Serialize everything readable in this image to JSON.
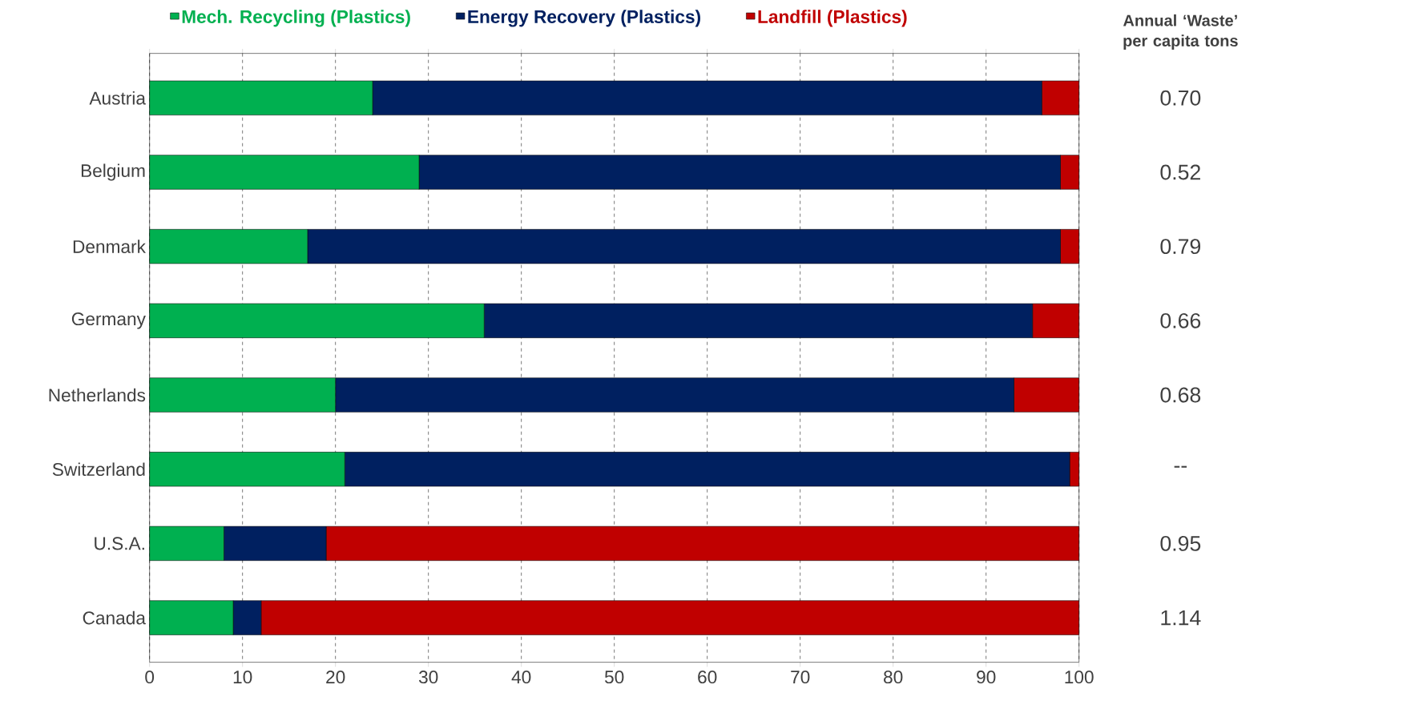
{
  "chart_data": {
    "type": "bar",
    "orientation": "horizontal",
    "stacked": true,
    "categories": [
      "Austria",
      "Belgium",
      "Denmark",
      "Germany",
      "Netherlands",
      "Switzerland",
      "U.S.A.",
      "Canada"
    ],
    "series": [
      {
        "name": "Mech. Recycling (Plastics)",
        "color": "#00b050",
        "values": [
          24,
          29,
          17,
          36,
          20,
          21,
          8,
          9
        ]
      },
      {
        "name": "Energy Recovery (Plastics)",
        "color": "#002060",
        "values": [
          72,
          69,
          81,
          59,
          73,
          78,
          11,
          3
        ]
      },
      {
        "name": "Landfill (Plastics)",
        "color": "#c00000",
        "values": [
          4,
          2,
          2,
          5,
          7,
          1,
          81,
          88
        ]
      }
    ],
    "xlim": [
      0,
      100
    ],
    "xticks": [
      0,
      10,
      20,
      30,
      40,
      50,
      60,
      70,
      80,
      90,
      100
    ],
    "grid": "x",
    "legend": "top",
    "annotations": [
      "Annual ‘Waste’ per capita tons",
      "0.70",
      "0.52",
      "0.79",
      "0.66",
      "0.68",
      "--",
      "0.95",
      "1.14"
    ]
  }
}
